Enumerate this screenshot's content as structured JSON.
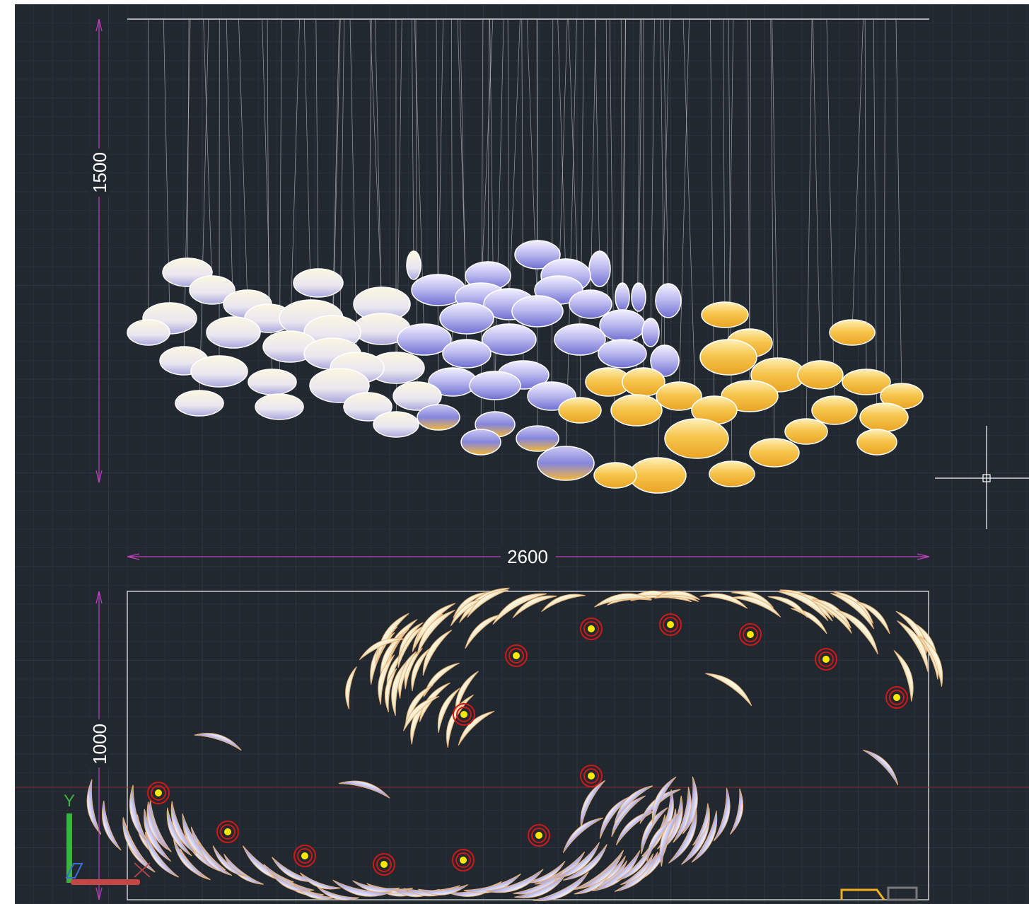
{
  "drawing": {
    "dimensions": {
      "elevation_height": "1500",
      "overall_width": "2600",
      "plan_depth": "1000"
    },
    "ucs_icon": {
      "y_axis_label": "Y"
    }
  },
  "colors": {
    "background": "#212830",
    "dimension_line": "#c040c0",
    "crosshair": "#ffffff",
    "disc_light": "#f6f2dc",
    "disc_lavender": "#8e8ee0",
    "disc_gold": "#f2b83a",
    "light_point_ring": "#d01818",
    "light_point_core": "#ffe800"
  }
}
